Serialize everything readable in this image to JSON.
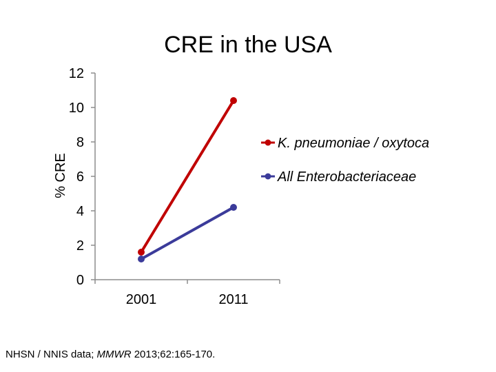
{
  "chart_data": {
    "type": "line",
    "title": "CRE in the USA",
    "xlabel": "",
    "ylabel": "% CRE",
    "categories": [
      "2001",
      "2011"
    ],
    "ylim": [
      0,
      12
    ],
    "yticks": [
      "0",
      "2",
      "4",
      "6",
      "8",
      "10",
      "12"
    ],
    "grid": false,
    "legend_position": "right",
    "series": [
      {
        "name": "K. pneumoniae / oxytoca",
        "values": [
          1.6,
          10.4
        ],
        "color": "#C00000"
      },
      {
        "name": "All Enterobacteriaceae",
        "values": [
          1.2,
          4.2
        ],
        "color": "#3B3B9A"
      }
    ]
  },
  "footnote": {
    "prefix": "NHSN / NNIS data; ",
    "journal": "MMWR",
    "suffix": " 2013;62:165-170."
  }
}
